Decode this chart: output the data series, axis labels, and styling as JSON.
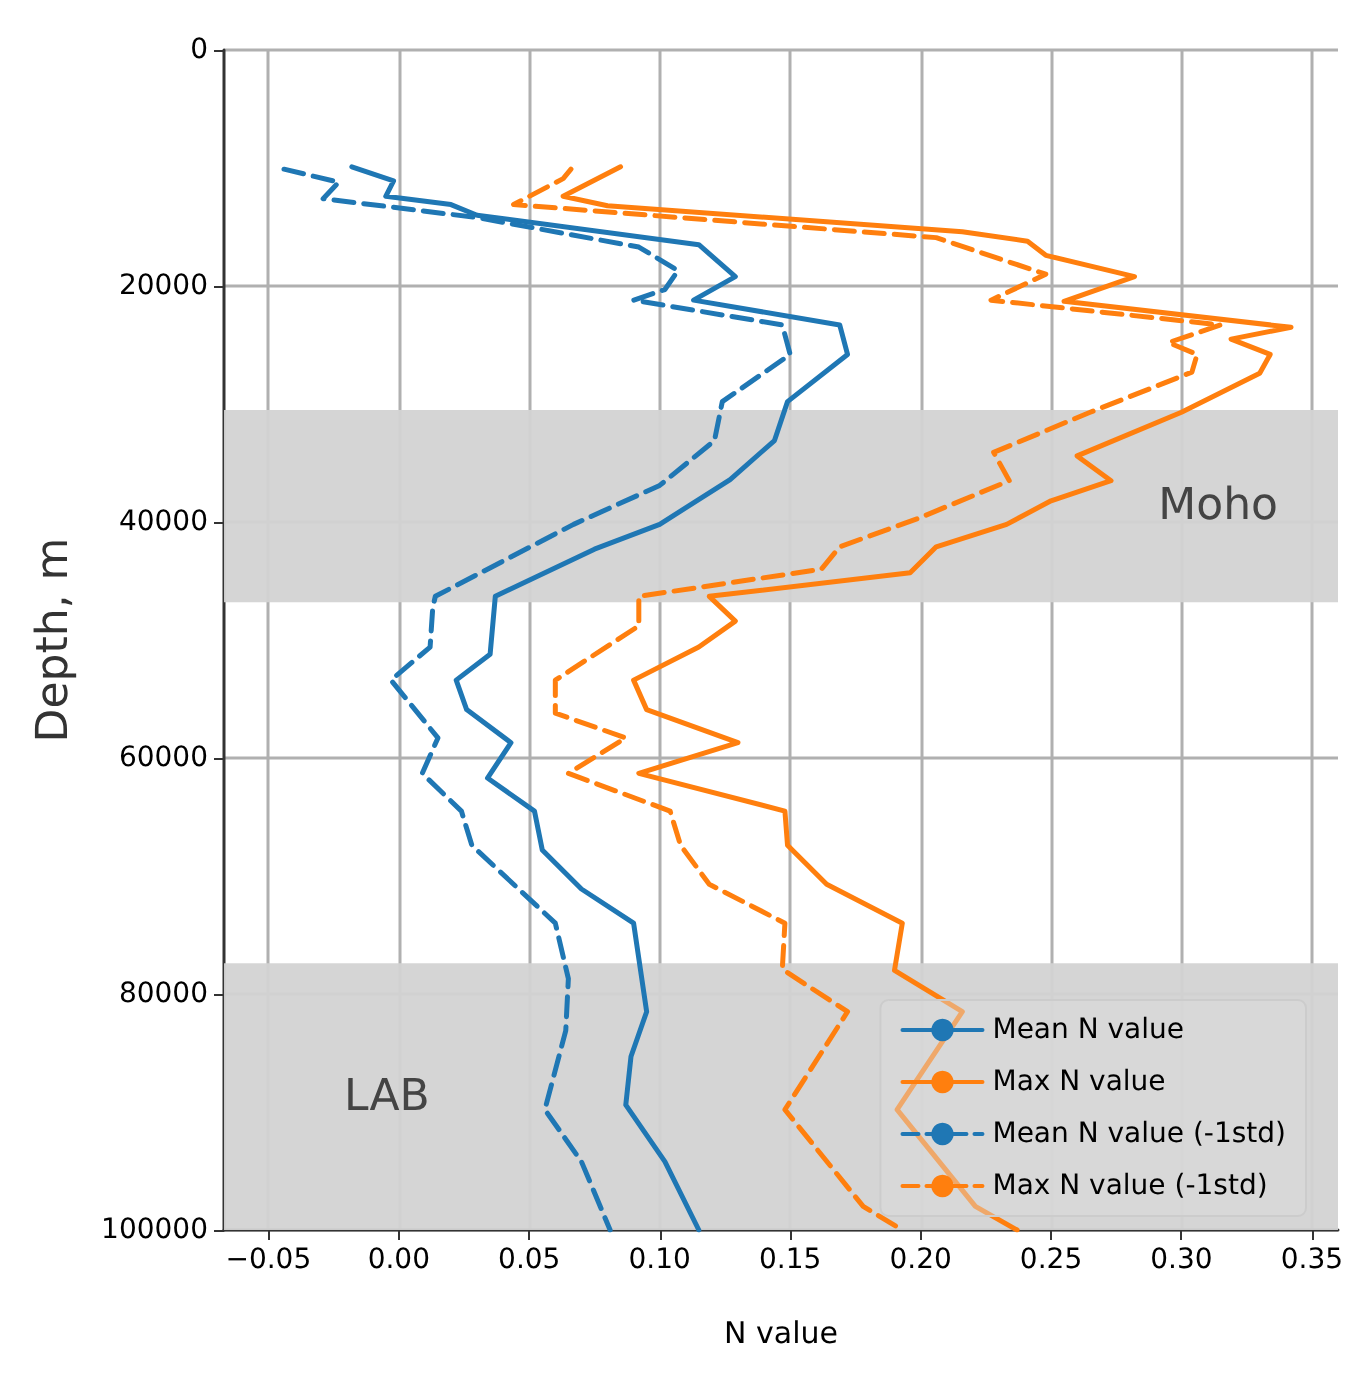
{
  "chart_data": {
    "type": "line",
    "xlabel": "N value",
    "ylabel": "Depth, m",
    "xlim": [
      -0.067,
      0.36
    ],
    "xticks": [
      {
        "value": -0.05,
        "label": "−0.05"
      },
      {
        "value": 0,
        "label": "0.00"
      },
      {
        "value": 0.05,
        "label": "0.05"
      },
      {
        "value": 0.1,
        "label": "0.10"
      },
      {
        "value": 0.15,
        "label": "0.15"
      },
      {
        "value": 0.2,
        "label": "0.20"
      },
      {
        "value": 0.25,
        "label": "0.25"
      },
      {
        "value": 0.3,
        "label": "0.30"
      },
      {
        "value": 0.35,
        "label": "0.35"
      }
    ],
    "ylim": [
      100000,
      0
    ],
    "yticks": [
      0,
      20000,
      40000,
      60000,
      80000,
      100000
    ],
    "grid": true,
    "legend": "bottom right",
    "bands": [
      {
        "axis": "y",
        "from": 30500,
        "to": 46800,
        "label": "Moho",
        "color": "#d3d3d3"
      },
      {
        "axis": "y",
        "from": 77400,
        "to": 100000,
        "label": "LAB",
        "color": "#d3d3d3"
      }
    ],
    "series": [
      {
        "name": "Mean N value",
        "color": "#1f77b4",
        "line_style": "solid",
        "x": [
          -0.018,
          -0.002,
          -0.005,
          0.02,
          0.03,
          0.115,
          0.129,
          0.113,
          0.169,
          0.172,
          0.149,
          0.144,
          0.127,
          0.1,
          0.075,
          0.037,
          0.035,
          0.022,
          0.026,
          0.043,
          0.034,
          0.052,
          0.055,
          0.07,
          0.09,
          0.095,
          0.089,
          0.087,
          0.102,
          0.115
        ],
        "values": [
          9900,
          11100,
          12400,
          13100,
          14000,
          16500,
          19200,
          21200,
          23300,
          25800,
          29800,
          33100,
          36400,
          40200,
          42300,
          46300,
          51200,
          53400,
          55900,
          58700,
          61700,
          64500,
          67800,
          71100,
          74000,
          81500,
          85300,
          89400,
          94200,
          100000
        ]
      },
      {
        "name": "Max N value",
        "color": "#ff7f0e",
        "line_style": "solid",
        "x": [
          0.085,
          0.063,
          0.08,
          0.216,
          0.241,
          0.248,
          0.282,
          0.255,
          0.342,
          0.319,
          0.334,
          0.33,
          0.3,
          0.26,
          0.273,
          0.25,
          0.233,
          0.206,
          0.196,
          0.119,
          0.129,
          0.115,
          0.09,
          0.095,
          0.13,
          0.092,
          0.148,
          0.149,
          0.164,
          0.193,
          0.19,
          0.216,
          0.191,
          0.221,
          0.237
        ],
        "values": [
          9900,
          12400,
          13200,
          15400,
          16200,
          17400,
          19200,
          21300,
          23500,
          24500,
          25800,
          27400,
          30700,
          34400,
          36500,
          38200,
          40200,
          42100,
          44300,
          46300,
          48400,
          50600,
          53400,
          55900,
          58700,
          61300,
          64500,
          67400,
          70700,
          74000,
          78000,
          81500,
          89800,
          98000,
          100000
        ]
      },
      {
        "name": "Mean N value (-1std)",
        "color": "#1f77b4",
        "line_style": "dashed",
        "x": [
          -0.044,
          -0.023,
          -0.029,
          0.03,
          0.092,
          0.107,
          0.102,
          0.09,
          0.147,
          0.15,
          0.124,
          0.121,
          0.1,
          0.067,
          0.014,
          0.013,
          0.012,
          -0.003,
          0.015,
          0.009,
          0.024,
          0.028,
          0.06,
          0.065,
          0.064,
          0.056,
          0.07,
          0.081
        ],
        "values": [
          10100,
          11200,
          12600,
          14200,
          16700,
          18700,
          20300,
          21200,
          23300,
          25800,
          29800,
          33100,
          36900,
          40200,
          46300,
          47300,
          50600,
          53400,
          58300,
          61300,
          64500,
          67400,
          74000,
          78700,
          83100,
          89800,
          94200,
          100000
        ]
      },
      {
        "name": "Max N value (-1std)",
        "color": "#ff7f0e",
        "line_style": "dashed",
        "x": [
          0.066,
          0.063,
          0.044,
          0.206,
          0.248,
          0.227,
          0.315,
          0.295,
          0.306,
          0.304,
          0.265,
          0.228,
          0.234,
          0.199,
          0.169,
          0.162,
          0.092,
          0.092,
          0.06,
          0.06,
          0.087,
          0.065,
          0.104,
          0.108,
          0.119,
          0.148,
          0.147,
          0.172,
          0.148,
          0.178,
          0.193
        ],
        "values": [
          10100,
          10900,
          13100,
          15900,
          19000,
          21200,
          23300,
          24800,
          25800,
          27300,
          30700,
          34100,
          36500,
          39700,
          42100,
          44000,
          46300,
          48800,
          53400,
          56200,
          58300,
          61300,
          64500,
          67400,
          70700,
          74000,
          77900,
          81500,
          89800,
          98000,
          100000
        ]
      }
    ]
  }
}
